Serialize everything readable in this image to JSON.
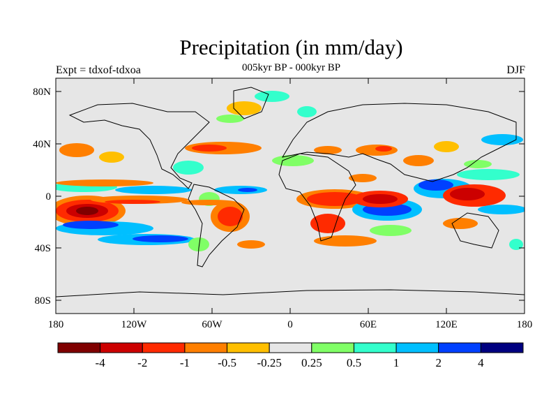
{
  "title": "Precipitation (in mm/day)",
  "subtitle": "005kyr BP - 000kyr BP",
  "experiment_label": "Expt = tdxof-tdxoa",
  "season_label": "DJF",
  "lat_ticks": [
    "80N",
    "40N",
    "0",
    "40S",
    "80S"
  ],
  "lon_ticks": [
    "180",
    "120W",
    "60W",
    "0",
    "60E",
    "120E",
    "180"
  ],
  "colorbar": {
    "colors": [
      "#7f0000",
      "#cc0000",
      "#ff2a00",
      "#ff7f00",
      "#ffbf00",
      "#e6e6e6",
      "#80ff66",
      "#33ffcc",
      "#00bfff",
      "#0040ff",
      "#000080"
    ],
    "labels": [
      "-4",
      "-2",
      "-1",
      "-0.5",
      "-0.25",
      "0.25",
      "0.5",
      "1",
      "2",
      "4"
    ]
  }
}
